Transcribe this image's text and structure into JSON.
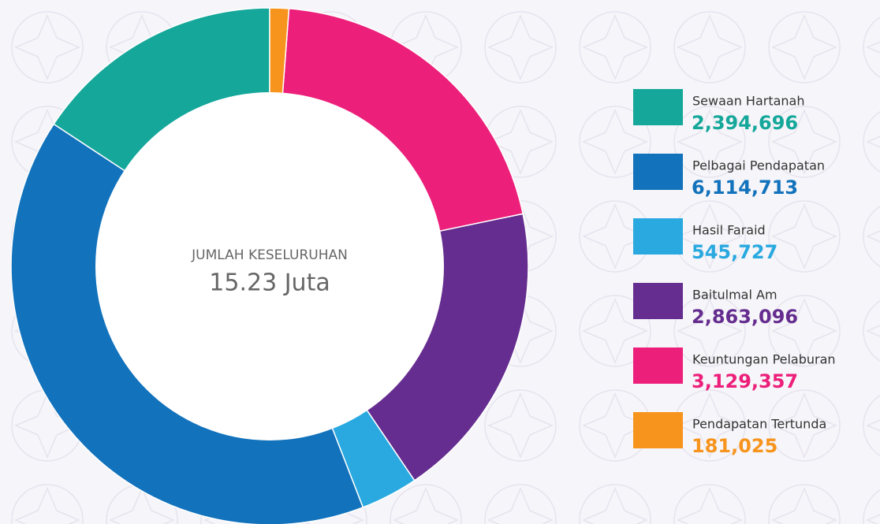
{
  "chart_data": {
    "type": "donut",
    "center_title": "JUMLAH KESELURUHAN",
    "center_value": "15.23 Juta",
    "categories": [
      "Sewaan Hartanah",
      "Pelbagai Pendapatan",
      "Hasil Faraid",
      "Baitulmal Am",
      "Keuntungan Pelaburan",
      "Pendapatan Tertunda"
    ],
    "values": [
      2394696,
      6114713,
      545727,
      2863096,
      3129357,
      181025
    ],
    "value_labels": [
      "2,394,696",
      "6,114,713",
      "545,727",
      "2,863,096",
      "3,129,357",
      "181,025"
    ],
    "colors": [
      "#14a79a",
      "#1272bc",
      "#29a9e0",
      "#652d8f",
      "#ec1f7a",
      "#f7941d"
    ],
    "direction": "counterclockwise"
  }
}
